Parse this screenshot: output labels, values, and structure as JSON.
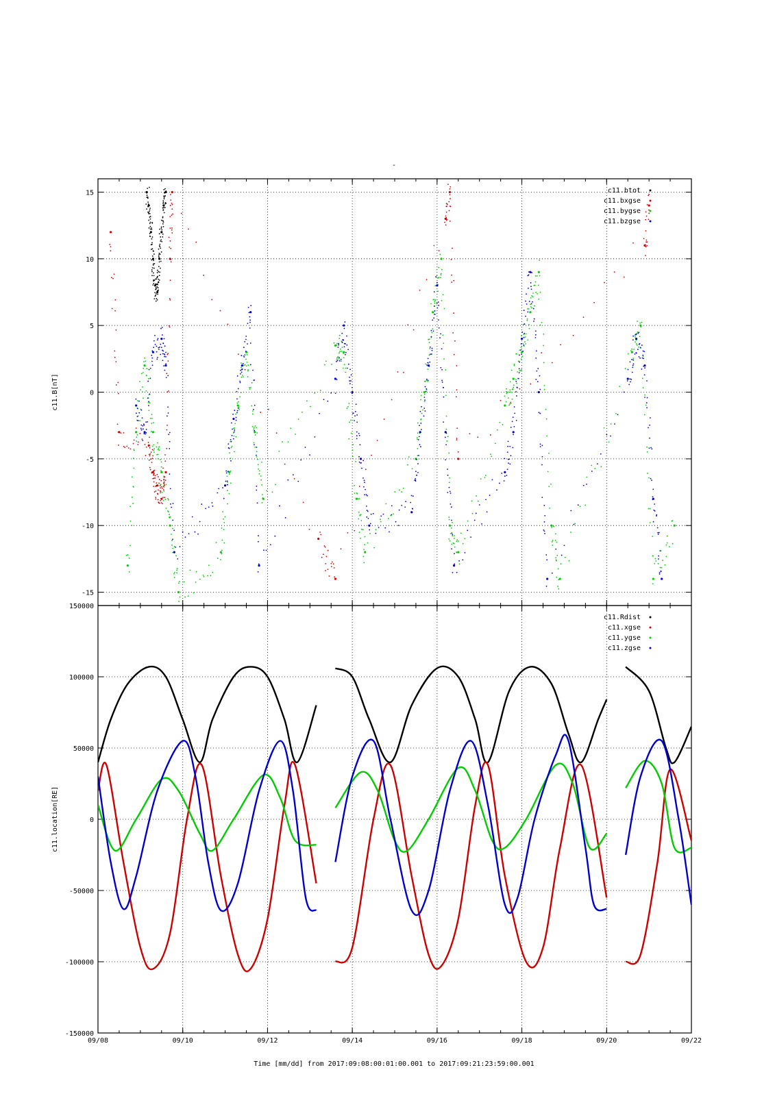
{
  "header": {
    "title_mark": "-"
  },
  "footer": {
    "time_label": "Time [mm/dd]  from 2017:09:08:00:01:00.001  to  2017:09:21:23:59:00.001"
  },
  "x_axis": {
    "range_days": [
      0,
      14
    ],
    "ticks": [
      {
        "day": 0,
        "label": "09/08"
      },
      {
        "day": 2,
        "label": "09/10"
      },
      {
        "day": 4,
        "label": "09/12"
      },
      {
        "day": 6,
        "label": "09/14"
      },
      {
        "day": 8,
        "label": "09/16"
      },
      {
        "day": 10,
        "label": "09/18"
      },
      {
        "day": 12,
        "label": "09/20"
      },
      {
        "day": 14,
        "label": "09/22"
      }
    ]
  },
  "chart_data": [
    {
      "type": "scatter",
      "title": "",
      "ylabel": "c11.B[nT]",
      "ylim": [
        -16,
        16
      ],
      "yticks": [
        -15,
        -10,
        -5,
        0,
        5,
        10,
        15
      ],
      "grid": true,
      "legend_position": "top-right",
      "series": [
        {
          "name": "c11.btot",
          "color": "#000000",
          "points": [
            [
              1.15,
              15
            ],
            [
              1.2,
              14
            ],
            [
              1.25,
              12
            ],
            [
              1.3,
              10
            ],
            [
              1.35,
              8
            ],
            [
              1.4,
              7.5
            ],
            [
              1.45,
              10
            ],
            [
              1.5,
              12
            ],
            [
              1.55,
              14
            ],
            [
              1.6,
              15
            ]
          ]
        },
        {
          "name": "c11.bxgse",
          "color": "#cc0000",
          "points": [
            [
              0.3,
              12
            ],
            [
              0.5,
              -3
            ],
            [
              1.2,
              -4
            ],
            [
              1.3,
              -6
            ],
            [
              1.4,
              -7
            ],
            [
              1.5,
              -8
            ],
            [
              1.6,
              -6
            ],
            [
              1.7,
              10
            ],
            [
              1.75,
              15
            ],
            [
              5.2,
              -11
            ],
            [
              5.6,
              -14
            ],
            [
              8.2,
              13
            ],
            [
              8.3,
              15
            ],
            [
              8.5,
              -5
            ],
            [
              12.9,
              11
            ],
            [
              13.0,
              14
            ]
          ]
        },
        {
          "name": "c11.bygse",
          "color": "#00cc00",
          "points": [
            [
              0.7,
              -13
            ],
            [
              0.9,
              -3
            ],
            [
              1.1,
              2
            ],
            [
              1.3,
              -3
            ],
            [
              1.5,
              -6
            ],
            [
              1.7,
              -10
            ],
            [
              1.9,
              -15
            ],
            [
              2.9,
              -12
            ],
            [
              3.1,
              -6
            ],
            [
              3.3,
              -1
            ],
            [
              3.5,
              3
            ],
            [
              3.7,
              -3
            ],
            [
              3.9,
              -8
            ],
            [
              5.6,
              3.5
            ],
            [
              5.8,
              3
            ],
            [
              6.1,
              -8
            ],
            [
              6.3,
              -12
            ],
            [
              7.5,
              -5
            ],
            [
              7.7,
              0
            ],
            [
              7.9,
              6
            ],
            [
              8.1,
              10
            ],
            [
              8.3,
              -10
            ],
            [
              8.5,
              -12
            ],
            [
              9.6,
              -1
            ],
            [
              9.8,
              1
            ],
            [
              10.0,
              3
            ],
            [
              10.2,
              6
            ],
            [
              10.4,
              9
            ],
            [
              10.7,
              -10
            ],
            [
              10.9,
              -14
            ],
            [
              12.6,
              3
            ],
            [
              12.8,
              5
            ],
            [
              13.1,
              -14
            ],
            [
              13.6,
              -10
            ]
          ]
        },
        {
          "name": "c11.bzgse",
          "color": "#0000cc",
          "points": [
            [
              0.9,
              -1
            ],
            [
              1.1,
              -3
            ],
            [
              1.3,
              3
            ],
            [
              1.5,
              4
            ],
            [
              1.6,
              2
            ],
            [
              1.8,
              -12
            ],
            [
              3.0,
              -7
            ],
            [
              3.2,
              -2
            ],
            [
              3.4,
              2
            ],
            [
              3.6,
              6
            ],
            [
              3.8,
              -13
            ],
            [
              5.6,
              1
            ],
            [
              5.8,
              5
            ],
            [
              6.0,
              0
            ],
            [
              6.2,
              -5
            ],
            [
              6.4,
              -10
            ],
            [
              7.4,
              -9
            ],
            [
              7.6,
              -3
            ],
            [
              7.8,
              2
            ],
            [
              8.0,
              8
            ],
            [
              8.2,
              -3
            ],
            [
              8.4,
              -13
            ],
            [
              9.6,
              -6
            ],
            [
              9.8,
              -3
            ],
            [
              10.0,
              4
            ],
            [
              10.2,
              9
            ],
            [
              10.4,
              0
            ],
            [
              10.6,
              -14
            ],
            [
              12.5,
              1
            ],
            [
              12.7,
              4
            ],
            [
              12.9,
              2
            ],
            [
              13.1,
              -8
            ],
            [
              13.3,
              -14
            ]
          ]
        }
      ]
    },
    {
      "type": "line",
      "title": "",
      "ylabel": "c11.location[RE]",
      "ylim": [
        -150000,
        150000
      ],
      "yticks": [
        -150000,
        -100000,
        -50000,
        0,
        50000,
        100000,
        150000
      ],
      "grid": true,
      "legend_position": "top-right",
      "data_segments_days": [
        [
          0,
          5.15
        ],
        [
          5.6,
          12.0
        ],
        [
          12.45,
          14
        ]
      ],
      "series": [
        {
          "name": "c11.Rdist",
          "color": "#000000",
          "points": [
            [
              0,
              40000
            ],
            [
              0.3,
              70000
            ],
            [
              0.7,
              95000
            ],
            [
              1.2,
              107000
            ],
            [
              1.6,
              100000
            ],
            [
              2.0,
              70000
            ],
            [
              2.4,
              40000
            ],
            [
              2.7,
              70000
            ],
            [
              3.2,
              100000
            ],
            [
              3.6,
              107000
            ],
            [
              4.0,
              100000
            ],
            [
              4.4,
              70000
            ],
            [
              4.7,
              40000
            ],
            [
              5.15,
              80000
            ],
            [
              5.6,
              106000
            ],
            [
              6.0,
              100000
            ],
            [
              6.4,
              70000
            ],
            [
              6.9,
              40000
            ],
            [
              7.4,
              80000
            ],
            [
              8.0,
              106000
            ],
            [
              8.5,
              100000
            ],
            [
              8.9,
              70000
            ],
            [
              9.2,
              40000
            ],
            [
              9.7,
              90000
            ],
            [
              10.2,
              107000
            ],
            [
              10.7,
              95000
            ],
            [
              11.1,
              60000
            ],
            [
              11.4,
              40000
            ],
            [
              11.8,
              70000
            ],
            [
              12.0,
              84000
            ],
            [
              12.45,
              107000
            ],
            [
              13.0,
              90000
            ],
            [
              13.4,
              50000
            ],
            [
              13.6,
              40000
            ],
            [
              14.0,
              65000
            ]
          ]
        },
        {
          "name": "c11.xgse",
          "color": "#cc0000",
          "points": [
            [
              0,
              20000
            ],
            [
              0.2,
              38000
            ],
            [
              0.6,
              -30000
            ],
            [
              1.0,
              -90000
            ],
            [
              1.3,
              -105000
            ],
            [
              1.7,
              -80000
            ],
            [
              2.1,
              0
            ],
            [
              2.45,
              38000
            ],
            [
              2.9,
              -40000
            ],
            [
              3.3,
              -95000
            ],
            [
              3.6,
              -105000
            ],
            [
              4.0,
              -70000
            ],
            [
              4.4,
              10000
            ],
            [
              4.65,
              38000
            ],
            [
              5.15,
              -45000
            ],
            [
              5.6,
              -100000
            ],
            [
              6.0,
              -90000
            ],
            [
              6.5,
              0
            ],
            [
              6.9,
              38000
            ],
            [
              7.4,
              -40000
            ],
            [
              7.8,
              -95000
            ],
            [
              8.1,
              -103000
            ],
            [
              8.5,
              -70000
            ],
            [
              8.9,
              10000
            ],
            [
              9.2,
              38000
            ],
            [
              9.6,
              -40000
            ],
            [
              10.1,
              -100000
            ],
            [
              10.5,
              -90000
            ],
            [
              10.9,
              -20000
            ],
            [
              11.4,
              38000
            ],
            [
              12.0,
              -55000
            ],
            [
              12.45,
              -100000
            ],
            [
              12.8,
              -95000
            ],
            [
              13.2,
              -30000
            ],
            [
              13.5,
              35000
            ],
            [
              14.0,
              -15000
            ]
          ]
        },
        {
          "name": "c11.ygse",
          "color": "#00cc00",
          "points": [
            [
              0,
              10000
            ],
            [
              0.4,
              -22000
            ],
            [
              0.9,
              0
            ],
            [
              1.5,
              28000
            ],
            [
              1.9,
              20000
            ],
            [
              2.4,
              -10000
            ],
            [
              2.7,
              -22000
            ],
            [
              3.2,
              0
            ],
            [
              3.9,
              31000
            ],
            [
              4.3,
              15000
            ],
            [
              4.65,
              -15000
            ],
            [
              5.15,
              -18000
            ],
            [
              5.6,
              8000
            ],
            [
              6.2,
              33000
            ],
            [
              6.6,
              20000
            ],
            [
              7.0,
              -15000
            ],
            [
              7.3,
              -22000
            ],
            [
              7.8,
              0
            ],
            [
              8.5,
              36000
            ],
            [
              8.9,
              20000
            ],
            [
              9.3,
              -15000
            ],
            [
              9.6,
              -20000
            ],
            [
              10.1,
              0
            ],
            [
              10.8,
              38000
            ],
            [
              11.2,
              25000
            ],
            [
              11.6,
              -20000
            ],
            [
              12.0,
              -10000
            ],
            [
              12.45,
              22000
            ],
            [
              12.9,
              41000
            ],
            [
              13.3,
              25000
            ],
            [
              13.6,
              -20000
            ],
            [
              14.0,
              -20000
            ]
          ]
        },
        {
          "name": "c11.zgse",
          "color": "#0000cc",
          "points": [
            [
              0,
              30000
            ],
            [
              0.3,
              -30000
            ],
            [
              0.6,
              -63000
            ],
            [
              0.9,
              -40000
            ],
            [
              1.4,
              20000
            ],
            [
              2.0,
              55000
            ],
            [
              2.3,
              30000
            ],
            [
              2.6,
              -30000
            ],
            [
              2.9,
              -64000
            ],
            [
              3.3,
              -45000
            ],
            [
              3.8,
              20000
            ],
            [
              4.3,
              55000
            ],
            [
              4.6,
              20000
            ],
            [
              4.9,
              -55000
            ],
            [
              5.15,
              -64000
            ],
            [
              5.6,
              -30000
            ],
            [
              6.0,
              30000
            ],
            [
              6.5,
              55000
            ],
            [
              6.9,
              0
            ],
            [
              7.4,
              -64000
            ],
            [
              7.8,
              -50000
            ],
            [
              8.3,
              20000
            ],
            [
              8.8,
              55000
            ],
            [
              9.2,
              10000
            ],
            [
              9.6,
              -60000
            ],
            [
              9.9,
              -55000
            ],
            [
              10.3,
              0
            ],
            [
              10.8,
              45000
            ],
            [
              11.1,
              55000
            ],
            [
              11.5,
              -20000
            ],
            [
              11.7,
              -60000
            ],
            [
              12.0,
              -63000
            ],
            [
              12.45,
              -25000
            ],
            [
              12.8,
              30000
            ],
            [
              13.3,
              55000
            ],
            [
              13.7,
              0
            ],
            [
              14.0,
              -60000
            ]
          ]
        }
      ]
    }
  ]
}
